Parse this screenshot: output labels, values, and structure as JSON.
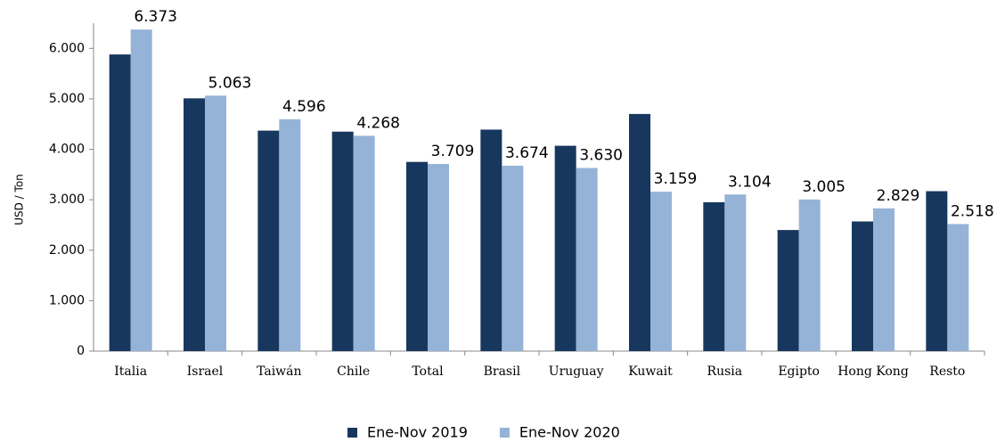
{
  "chart_data": {
    "type": "bar",
    "y_label": "USD / Ton",
    "categories": [
      "Italia",
      "Israel",
      "Taiwán",
      "Chile",
      "Total",
      "Brasil",
      "Uruguay",
      "Kuwait",
      "Rusia",
      "Egipto",
      "Hong Kong",
      "Resto"
    ],
    "series": [
      {
        "name": "Ene-Nov 2019",
        "color": "#17375e",
        "values": [
          5880,
          5010,
          4370,
          4350,
          3750,
          4390,
          4070,
          4700,
          2950,
          2400,
          2570,
          3170
        ]
      },
      {
        "name": "Ene-Nov 2020",
        "color": "#95b3d7",
        "values": [
          6373,
          5063,
          4596,
          4268,
          3709,
          3674,
          3630,
          3159,
          3104,
          3005,
          2829,
          2518
        ],
        "value_labels": [
          "6.373",
          "5.063",
          "4.596",
          "4.268",
          "3.709",
          "3.674",
          "3.630",
          "3.159",
          "3.104",
          "3.005",
          "2.829",
          "2.518"
        ]
      }
    ],
    "ylim": [
      0,
      6500
    ],
    "yticks": [
      0,
      {
        "value": 1000,
        "label": "1.000"
      },
      {
        "value": 2000,
        "label": "2.000"
      },
      {
        "value": 3000,
        "label": "3.000"
      },
      {
        "value": 4000,
        "label": "4.000"
      },
      {
        "value": 5000,
        "label": "5.000"
      },
      {
        "value": 6000,
        "label": "6.000"
      }
    ],
    "legend": "bottom"
  }
}
